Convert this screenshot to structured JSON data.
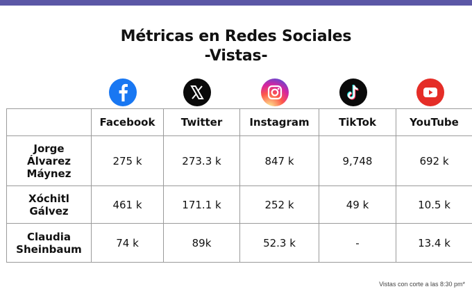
{
  "title_line1": "Métricas en Redes Sociales",
  "title_line2": "-Vistas-",
  "platforms": [
    {
      "name": "Facebook",
      "icon": "facebook-icon",
      "color": "#1877f2"
    },
    {
      "name": "Twitter",
      "icon": "x-twitter-icon",
      "color": "#000000"
    },
    {
      "name": "Instagram",
      "icon": "instagram-icon",
      "color": "#d62976"
    },
    {
      "name": "TikTok",
      "icon": "tiktok-icon",
      "color": "#000000"
    },
    {
      "name": "YouTube",
      "icon": "youtube-icon",
      "color": "#e52d27"
    }
  ],
  "rows": [
    {
      "label_lines": [
        "Jorge",
        "Álvarez",
        "Máynez"
      ],
      "values": [
        "275 k",
        "273.3 k",
        "847 k",
        "9,748",
        "692 k"
      ]
    },
    {
      "label_lines": [
        "Xóchitl",
        "Gálvez"
      ],
      "values": [
        "461 k",
        "171.1 k",
        "252 k",
        "49 k",
        "10.5 k"
      ]
    },
    {
      "label_lines": [
        "Claudia",
        "Sheinbaum"
      ],
      "values": [
        "74 k",
        "89k",
        "52.3 k",
        "-",
        "13.4 k"
      ]
    }
  ],
  "footnote": "Vistas con corte a las 8:30 pm*",
  "colors": {
    "top_bar": "#5b57a6",
    "border": "#9a9a9a"
  }
}
